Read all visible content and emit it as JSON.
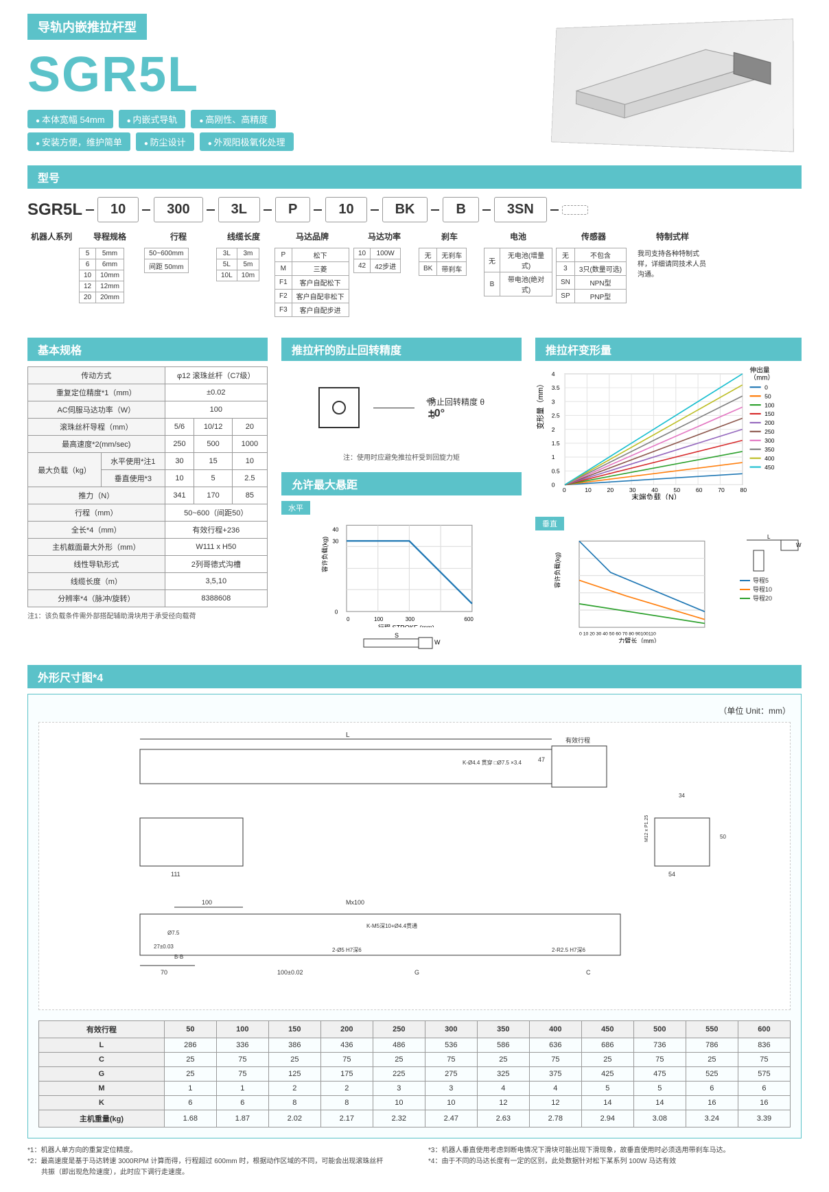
{
  "header": {
    "band": "导轨内嵌推拉杆型",
    "model": "SGR5L"
  },
  "tags": {
    "row1": [
      "本体宽幅 54mm",
      "内嵌式导轨",
      "高刚性、高精度"
    ],
    "row2": [
      "安装方便，维护简单",
      "防尘设计",
      "外观阳极氧化处理"
    ]
  },
  "section_titles": {
    "model_no": "型号",
    "basic_spec": "基本规格",
    "rotation": "推拉杆的防止回转精度",
    "deform": "推拉杆变形量",
    "overhang": "允许最大悬距",
    "dimension": "外形尺寸图*4"
  },
  "model_code": {
    "prefix": "SGR5L",
    "boxes": [
      "10",
      "300",
      "3L",
      "P",
      "10",
      "BK",
      "B",
      "3SN"
    ],
    "dash": " "
  },
  "config": {
    "series_label": "机器人系列",
    "cols": [
      {
        "title": "导程规格",
        "w": 90,
        "opts": [
          [
            "5",
            "5mm"
          ],
          [
            "6",
            "6mm"
          ],
          [
            "10",
            "10mm"
          ],
          [
            "12",
            "12mm"
          ],
          [
            "20",
            "20mm"
          ]
        ]
      },
      {
        "title": "行程",
        "w": 100,
        "opts": [
          [
            "50~600mm",
            ""
          ],
          [
            "间距 50mm",
            ""
          ]
        ]
      },
      {
        "title": "线缆长度",
        "w": 80,
        "opts": [
          [
            "3L",
            "3m"
          ],
          [
            "5L",
            "5m"
          ],
          [
            "10L",
            "10m"
          ]
        ]
      },
      {
        "title": "马达品牌",
        "w": 110,
        "opts": [
          [
            "P",
            "松下"
          ],
          [
            "M",
            "三菱"
          ],
          [
            "F1",
            "客户自配松下"
          ],
          [
            "F2",
            "客户自配非松下"
          ],
          [
            "F3",
            "客户自配步进"
          ]
        ]
      },
      {
        "title": "马达功率",
        "w": 90,
        "opts": [
          [
            "10",
            "100W"
          ],
          [
            "42",
            "42步进"
          ]
        ]
      },
      {
        "title": "刹车",
        "w": 90,
        "opts": [
          [
            "无",
            "无刹车"
          ],
          [
            "BK",
            "带刹车"
          ]
        ]
      },
      {
        "title": "电池",
        "w": 100,
        "opts": [
          [
            "无",
            "无电池(增量式)"
          ],
          [
            "B",
            "带电池(绝对式)"
          ]
        ]
      },
      {
        "title": "传感器",
        "w": 110,
        "opts": [
          [
            "无",
            "不包含"
          ],
          [
            "3",
            "3只(数量可选)"
          ],
          [
            "SN",
            "NPN型"
          ],
          [
            "SP",
            "PNP型"
          ]
        ]
      },
      {
        "title": "特制式样",
        "w": 110,
        "text": "我司支持各种特制式样，详细请同技术人员沟通。"
      }
    ]
  },
  "basic_spec": {
    "rows": [
      {
        "label": "传动方式",
        "cols": [
          "φ12 滚珠丝杆（C7级）"
        ],
        "span": 3
      },
      {
        "label": "重复定位精度*1（mm）",
        "cols": [
          "±0.02"
        ],
        "span": 3
      },
      {
        "label": "AC伺服马达功率（W）",
        "cols": [
          "100"
        ],
        "span": 3
      },
      {
        "label": "滚珠丝杆导程（mm）",
        "cols": [
          "5/6",
          "10/12",
          "20"
        ]
      },
      {
        "label": "最高速度*2(mm/sec)",
        "cols": [
          "250",
          "500",
          "1000"
        ]
      },
      {
        "label": "最大负载（kg）",
        "sublabel": "水平使用*注1",
        "cols": [
          "30",
          "15",
          "10"
        ]
      },
      {
        "label": "",
        "sublabel": "垂直使用*3",
        "cols": [
          "10",
          "5",
          "2.5"
        ]
      },
      {
        "label": "推力（N）",
        "cols": [
          "341",
          "170",
          "85"
        ]
      },
      {
        "label": "行程（mm）",
        "cols": [
          "50~600（间距50）"
        ],
        "span": 3
      },
      {
        "label": "全长*4（mm）",
        "cols": [
          "有效行程+236"
        ],
        "span": 3
      },
      {
        "label": "主机截面最大外形（mm）",
        "cols": [
          "W111 x H50"
        ],
        "span": 3
      },
      {
        "label": "线性导轨形式",
        "cols": [
          "2列哥德式沟槽"
        ],
        "span": 3
      },
      {
        "label": "线缆长度（m）",
        "cols": [
          "3,5,10"
        ],
        "span": 3
      },
      {
        "label": "分辨率*4（脉冲/旋转）",
        "cols": [
          "8388608"
        ],
        "span": 3
      }
    ],
    "note": "注1：该负载条件需外部搭配辅助滑块用于承受径向载荷"
  },
  "rotation": {
    "theta_plus": "+θ",
    "theta_minus": "-θ",
    "label": "防止回转精度 θ",
    "value": "±0°",
    "note": "注：使用时应避免推拉杆受到回旋力矩"
  },
  "deform_chart": {
    "ylabel": "变形量（mm）",
    "xlabel": "末端负载（N）",
    "legend_title": "伸出量（mm）",
    "legend": [
      "0",
      "50",
      "100",
      "150",
      "200",
      "250",
      "300",
      "350",
      "400",
      "450"
    ],
    "colors": [
      "#1f77b4",
      "#ff7f0e",
      "#2ca02c",
      "#d62728",
      "#9467bd",
      "#8c564b",
      "#e377c2",
      "#7f7f7f",
      "#bcbd22",
      "#17becf"
    ],
    "xlim": [
      0,
      80
    ],
    "xticks": [
      0,
      10,
      20,
      30,
      40,
      50,
      60,
      70,
      80
    ],
    "ylim": [
      0,
      4
    ],
    "yticks": [
      0,
      0.5,
      1,
      1.5,
      2,
      2.5,
      3,
      3.5,
      4
    ]
  },
  "overhang": {
    "horiz_label": "水平",
    "vert_label": "垂直",
    "horiz": {
      "ylabel": "容许负载(kg)",
      "xlabel": "行程 STROKE (mm)",
      "xlim": [
        0,
        600
      ],
      "ylim": [
        0,
        40
      ]
    },
    "vert": {
      "ylabel": "容许负载(kg)",
      "xlabel": "力臂长（mm）",
      "xlim": [
        0,
        110
      ],
      "ylim": [
        0,
        10
      ],
      "legend": [
        "导程5",
        "导程10",
        "导程20"
      ]
    }
  },
  "dimension": {
    "unit": "（单位 Unit：mm）",
    "table": {
      "header": [
        "有效行程",
        "50",
        "100",
        "150",
        "200",
        "250",
        "300",
        "350",
        "400",
        "450",
        "500",
        "550",
        "600"
      ],
      "rows": [
        [
          "L",
          "286",
          "336",
          "386",
          "436",
          "486",
          "536",
          "586",
          "636",
          "686",
          "736",
          "786",
          "836"
        ],
        [
          "C",
          "25",
          "75",
          "25",
          "75",
          "25",
          "75",
          "25",
          "75",
          "25",
          "75",
          "25",
          "75"
        ],
        [
          "G",
          "25",
          "75",
          "125",
          "175",
          "225",
          "275",
          "325",
          "375",
          "425",
          "475",
          "525",
          "575"
        ],
        [
          "M",
          "1",
          "1",
          "2",
          "2",
          "3",
          "3",
          "4",
          "4",
          "5",
          "5",
          "6",
          "6"
        ],
        [
          "K",
          "6",
          "6",
          "8",
          "8",
          "10",
          "10",
          "12",
          "12",
          "14",
          "14",
          "16",
          "16"
        ],
        [
          "主机重量(kg)",
          "1.68",
          "1.87",
          "2.02",
          "2.17",
          "2.32",
          "2.47",
          "2.63",
          "2.78",
          "2.94",
          "3.08",
          "3.24",
          "3.39"
        ]
      ]
    }
  },
  "footnotes": {
    "left": [
      "*1：机器人单方向的重复定位精度。",
      "*2：最高速度是基于马达转速 3000RPM 计算而得，行程超过 600mm 时，根据动作区域的不同，可能会出现滚珠丝杆",
      "　　共振（即出现危险速度），此时应下调行走速度。"
    ],
    "right": [
      "*3：机器人垂直使用考虑到断电情况下滑块可能出现下滑现象，故垂直使用时必须选用带刹车马达。",
      "*4：由于不同的马达长度有一定的区别，此处数据针对松下某系列 100W 马达有效"
    ]
  }
}
